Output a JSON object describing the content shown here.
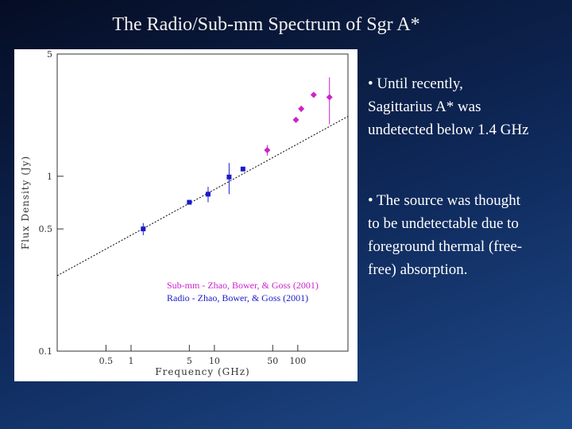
{
  "title": "The Radio/Sub-mm Spectrum of Sgr A*",
  "bullets": [
    [
      "• Until recently,",
      "Sagittarius A* was",
      "undetected below 1.4 GHz"
    ],
    [
      "• The source was thought",
      "to be undetectable due to",
      "foreground thermal (free-",
      "free) absorption."
    ]
  ],
  "chart_data": {
    "type": "scatter",
    "x_label": "Frequency (GHz)",
    "y_label": "Flux Density (Jy)",
    "log_x": true,
    "log_y": true,
    "xlim": [
      0.13,
      400
    ],
    "ylim": [
      0.1,
      5
    ],
    "xticks": [
      0.5,
      1,
      5,
      10,
      50,
      100
    ],
    "yticks": [
      0.1,
      0.5,
      1,
      5
    ],
    "series": [
      {
        "name": "Sub-mm - Zhao, Bower, & Goss (2001)",
        "color": "#cc22cc",
        "marker": "diamond",
        "x": [
          43,
          95,
          110,
          155,
          240
        ],
        "values": [
          1.41,
          2.1,
          2.43,
          2.92,
          2.83
        ],
        "errors": [
          0.1,
          0.05,
          0.1,
          null,
          0.85
        ]
      },
      {
        "name": "Radio - Zhao, Bower, & Goss (2001)",
        "color": "#1a1acc",
        "marker": "square",
        "x": [
          1.4,
          5,
          8.4,
          15,
          22
        ],
        "values": [
          0.5,
          0.71,
          0.79,
          0.99,
          1.1
        ],
        "errors": [
          0.04,
          null,
          0.08,
          0.2,
          null
        ]
      }
    ],
    "fit_line": {
      "x": [
        0.13,
        400
      ],
      "values": [
        0.27,
        2.2
      ],
      "color": "#000000"
    }
  }
}
